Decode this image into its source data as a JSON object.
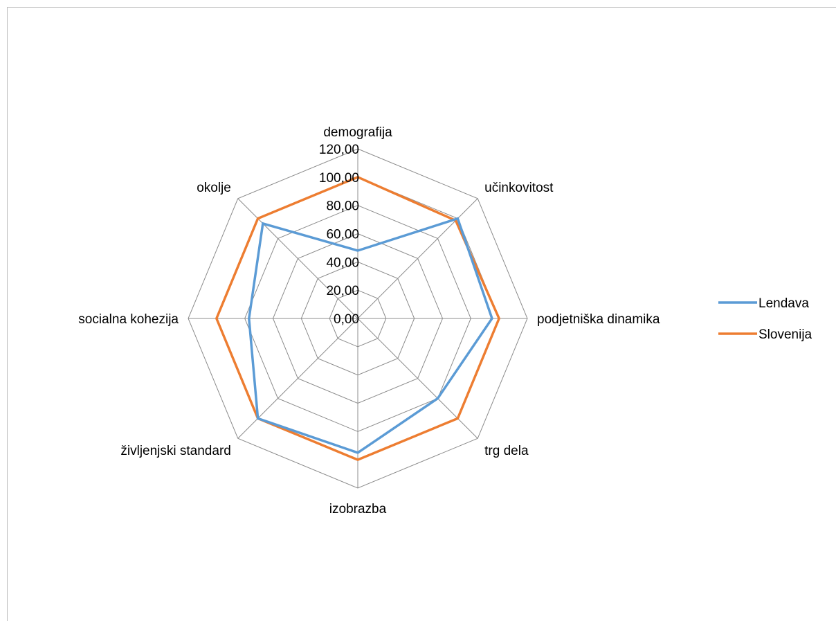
{
  "chart_data": {
    "type": "radar",
    "categories": [
      "demografija",
      "učinkovitost",
      "podjetniška dinamika",
      "trg dela",
      "izobrazba",
      "življenjski standard",
      "socialna kohezija",
      "okolje"
    ],
    "series": [
      {
        "name": "Lendava",
        "color": "#5b9bd5",
        "values": [
          48,
          100,
          95,
          80,
          95,
          100,
          77,
          95
        ]
      },
      {
        "name": "Slovenija",
        "color": "#ed7d31",
        "values": [
          100,
          98,
          100,
          100,
          100,
          100,
          100,
          100
        ]
      }
    ],
    "rlim": [
      0,
      120
    ],
    "ticks": [
      "0,00",
      "20,00",
      "40,00",
      "60,00",
      "80,00",
      "100,00",
      "120,00"
    ],
    "tick_values": [
      0,
      20,
      40,
      60,
      80,
      100,
      120
    ],
    "grid": true,
    "legend": "right"
  }
}
